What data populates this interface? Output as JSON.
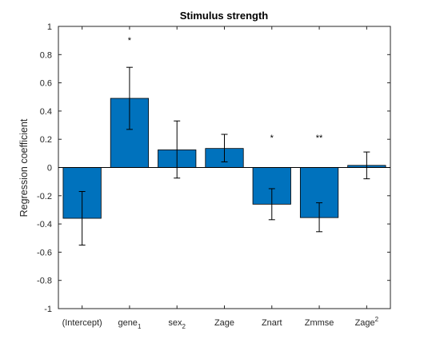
{
  "chart_data": {
    "type": "bar",
    "title": "Stimulus strength",
    "xlabel": "",
    "ylabel": "Regression coefficient",
    "ylim": [
      -1,
      1
    ],
    "yticks": [
      "-1",
      "-0.8",
      "-0.6",
      "-0.4",
      "-0.2",
      "0",
      "0.2",
      "0.4",
      "0.6",
      "0.8",
      "1"
    ],
    "ytick_values": [
      -1,
      -0.8,
      -0.6,
      -0.4,
      -0.2,
      0,
      0.2,
      0.4,
      0.6,
      0.8,
      1
    ],
    "categories": [
      {
        "base": "(Intercept)",
        "sub": "",
        "sup": ""
      },
      {
        "base": "gene",
        "sub": "1",
        "sup": ""
      },
      {
        "base": "sex",
        "sub": "2",
        "sup": ""
      },
      {
        "base": "Zage",
        "sub": "",
        "sup": ""
      },
      {
        "base": "Znart",
        "sub": "",
        "sup": ""
      },
      {
        "base": "Zmmse",
        "sub": "",
        "sup": ""
      },
      {
        "base": "Zage",
        "sub": "",
        "sup": "2"
      }
    ],
    "values": [
      -0.36,
      0.49,
      0.125,
      0.135,
      -0.26,
      -0.355,
      0.015
    ],
    "error_low": [
      -0.55,
      0.27,
      -0.075,
      0.04,
      -0.37,
      -0.455,
      -0.08
    ],
    "error_high": [
      -0.17,
      0.71,
      0.33,
      0.235,
      -0.15,
      -0.25,
      0.11
    ],
    "significance": [
      "",
      "*",
      "",
      "",
      "*",
      "**",
      ""
    ],
    "bar_color": "#0072BD",
    "grid": false,
    "legend": "none"
  }
}
